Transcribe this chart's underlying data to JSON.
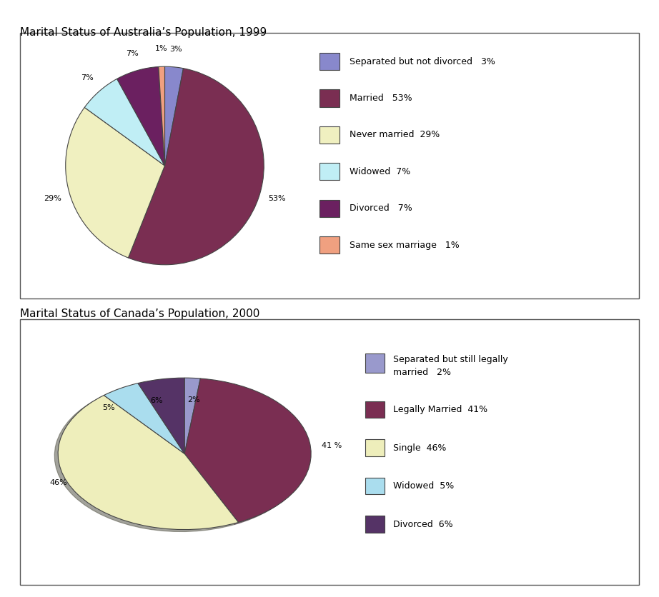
{
  "chart1": {
    "title": "Marital Status of Australia’s Population, 1999",
    "labels": [
      "Separated but not divorced",
      "Married",
      "Never married",
      "Widowed",
      "Divorced",
      "Same sex marriage"
    ],
    "values": [
      3,
      53,
      29,
      7,
      7,
      1
    ],
    "colors": [
      "#8888cc",
      "#7a2e52",
      "#f0f0c0",
      "#c0eef5",
      "#6b2060",
      "#f0a080"
    ],
    "legend_labels": [
      "Separated but not divorced   3%",
      "Married   53%",
      "Never married  29%",
      "Widowed  7%",
      "Divorced   7%",
      "Same sex marriage   1%"
    ],
    "pct_labels": [
      "3%",
      "53%",
      "29%",
      "7%",
      "7%",
      "1%"
    ],
    "startangle": 90
  },
  "chart2": {
    "title": "Marital Status of Canada’s Population, 2000",
    "labels": [
      "Separated but still legally married",
      "Legally Married",
      "Single",
      "Widowed",
      "Divorced"
    ],
    "values": [
      2,
      41,
      46,
      5,
      6
    ],
    "colors": [
      "#9999cc",
      "#7a2e52",
      "#eeeebb",
      "#aaddee",
      "#553366"
    ],
    "legend_line1": "Separated but still legally",
    "legend_line2": "married   2%",
    "legend_rest": [
      "Legally Married  41%",
      "Single  46%",
      "Widowed  5%",
      "Divorced  6%"
    ],
    "legend_rest_colors": [
      "#7a2e52",
      "#eeeebb",
      "#aaddee",
      "#553366"
    ],
    "pct_labels": [
      "2%",
      "41 %",
      "46%",
      "5%",
      "6%"
    ],
    "startangle": 90
  },
  "bg_color": "#ffffff",
  "border_color": "#555555",
  "title_fontsize": 11,
  "label_fontsize": 9,
  "legend_fontsize": 9
}
